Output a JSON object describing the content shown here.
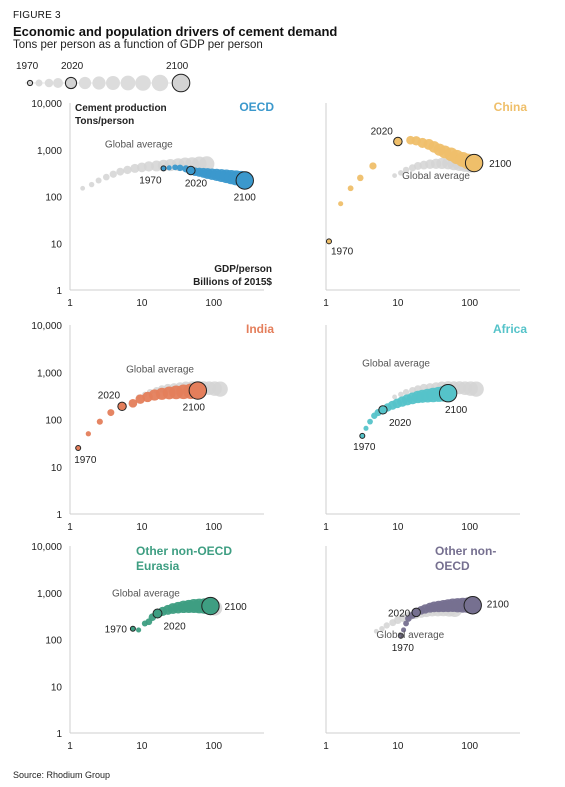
{
  "header": {
    "figure_label": "FIGURE 3",
    "title": "Economic and population drivers of cement demand",
    "subtitle": "Tons per person as a function of GDP per person"
  },
  "legend": {
    "labels": [
      "1970",
      "2020",
      "2100"
    ]
  },
  "source": "Source: Rhodium Group",
  "axis_text": {
    "y_label_line1": "Cement production",
    "y_label_line2": "Tons/person",
    "x_label_line1": "GDP/person",
    "x_label_line2": "Billions of 2015$"
  },
  "colors": {
    "OECD": "#3b98cc",
    "China": "#efbf6a",
    "India": "#e47e5b",
    "Africa": "#55c3c9",
    "Other non-OECD Eurasia": "#3e9e82",
    "Other non-OECD": "#767090",
    "global": "#d3d3d3"
  },
  "chart_data": [
    {
      "type": "scatter",
      "title": "OECD",
      "xscale": "log",
      "yscale": "log",
      "xlim": [
        1,
        500
      ],
      "ylim": [
        1,
        10000
      ],
      "x_ticks": [
        "1",
        "10",
        "100"
      ],
      "y_ticks": [
        "1",
        "10",
        "100",
        "1,000",
        "10,000"
      ],
      "labels": {
        "1970": "1970",
        "2020": "2020",
        "2100": "2100",
        "global": "Global average"
      },
      "series": [
        {
          "x": [
            20,
            24,
            29,
            34,
            41,
            48,
            55,
            63,
            72,
            82,
            95,
            110,
            128,
            150,
            175,
            205,
            240,
            270
          ],
          "y": [
            400,
            410,
            420,
            410,
            390,
            360,
            340,
            330,
            320,
            310,
            300,
            290,
            280,
            270,
            260,
            250,
            240,
            220
          ]
        }
      ],
      "global_average": {
        "x": [
          1.5,
          2,
          2.5,
          3.2,
          4,
          5,
          6.3,
          8,
          10,
          12.5,
          16,
          20,
          25,
          32,
          40,
          50,
          63,
          80
        ],
        "y": [
          150,
          180,
          220,
          260,
          300,
          340,
          370,
          400,
          420,
          440,
          450,
          460,
          470,
          480,
          490,
          490,
          500,
          500
        ]
      }
    },
    {
      "type": "scatter",
      "title": "China",
      "xscale": "log",
      "yscale": "log",
      "xlim": [
        1,
        500
      ],
      "ylim": [
        1,
        10000
      ],
      "x_ticks": [
        "1",
        "10",
        "100"
      ],
      "y_ticks": [
        "1",
        "10",
        "100",
        "1,000",
        "10,000"
      ],
      "labels": {
        "1970": "1970",
        "2020": "2020",
        "2100": "2100",
        "global": "Global average"
      },
      "series": [
        {
          "x": [
            1.1,
            1.6,
            2.2,
            3,
            4.5,
            10,
            15,
            18,
            22,
            27,
            32,
            38,
            45,
            55,
            66,
            80,
            95,
            115
          ],
          "y": [
            11,
            70,
            150,
            250,
            450,
            1500,
            1600,
            1550,
            1400,
            1300,
            1150,
            1000,
            900,
            800,
            700,
            620,
            560,
            520
          ]
        }
      ],
      "global_average": {
        "x": [
          9,
          11,
          13,
          16,
          19,
          23,
          28,
          34,
          41,
          50,
          60,
          72,
          86,
          103
        ],
        "y": [
          280,
          320,
          370,
          410,
          450,
          470,
          490,
          500,
          510,
          510,
          500,
          490,
          480,
          470
        ]
      }
    },
    {
      "type": "scatter",
      "title": "India",
      "xscale": "log",
      "yscale": "log",
      "xlim": [
        1,
        500
      ],
      "ylim": [
        1,
        10000
      ],
      "x_ticks": [
        "1",
        "10",
        "100"
      ],
      "y_ticks": [
        "1",
        "10",
        "100",
        "1,000",
        "10,000"
      ],
      "labels": {
        "1970": "1970",
        "2020": "2020",
        "2100": "2100",
        "global": "Global average"
      },
      "series": [
        {
          "x": [
            1.3,
            1.8,
            2.6,
            3.7,
            5.3,
            7.5,
            9.5,
            12,
            15,
            19,
            24,
            30,
            38,
            48,
            60
          ],
          "y": [
            25,
            50,
            90,
            140,
            190,
            220,
            270,
            300,
            330,
            350,
            365,
            375,
            385,
            395,
            410
          ]
        }
      ],
      "global_average": {
        "x": [
          9,
          11,
          13,
          16,
          19,
          23,
          28,
          34,
          41,
          50,
          60,
          72,
          86,
          103,
          123
        ],
        "y": [
          300,
          340,
          380,
          410,
          440,
          460,
          470,
          480,
          490,
          490,
          480,
          470,
          460,
          450,
          440
        ]
      }
    },
    {
      "type": "scatter",
      "title": "Africa",
      "xscale": "log",
      "yscale": "log",
      "xlim": [
        1,
        500
      ],
      "ylim": [
        1,
        10000
      ],
      "x_ticks": [
        "1",
        "10",
        "100"
      ],
      "y_ticks": [
        "1",
        "10",
        "100",
        "1,000",
        "10,000"
      ],
      "labels": {
        "1970": "1970",
        "2020": "2020",
        "2100": "2100",
        "global": "Global average"
      },
      "series": [
        {
          "x": [
            3.2,
            3.6,
            4.1,
            4.7,
            5.3,
            6.2,
            7.2,
            8.4,
            9.8,
            11.5,
            13.5,
            16,
            19,
            22,
            26,
            31,
            37,
            43,
            50
          ],
          "y": [
            45,
            65,
            90,
            120,
            140,
            160,
            180,
            200,
            220,
            240,
            260,
            280,
            300,
            310,
            320,
            330,
            340,
            350,
            360
          ]
        }
      ],
      "global_average": {
        "x": [
          9,
          11,
          13,
          16,
          19,
          23,
          28,
          34,
          41,
          50,
          60,
          72,
          86,
          103,
          123
        ],
        "y": [
          300,
          340,
          380,
          410,
          440,
          460,
          470,
          480,
          490,
          490,
          480,
          470,
          460,
          450,
          440
        ]
      }
    },
    {
      "type": "scatter",
      "title": "Other non-OECD Eurasia",
      "xscale": "log",
      "yscale": "log",
      "xlim": [
        1,
        500
      ],
      "ylim": [
        1,
        10000
      ],
      "x_ticks": [
        "1",
        "10",
        "100"
      ],
      "y_ticks": [
        "1",
        "10",
        "100",
        "1,000",
        "10,000"
      ],
      "labels": {
        "1970": "1970",
        "2020": "2020",
        "2100": "2100",
        "global": "Global average"
      },
      "series": [
        {
          "x": [
            7.5,
            9,
            11,
            12.5,
            14,
            16.5,
            19.5,
            23,
            27,
            32,
            38,
            45,
            53,
            63,
            75,
            90
          ],
          "y": [
            170,
            160,
            220,
            240,
            300,
            360,
            400,
            430,
            460,
            480,
            500,
            510,
            520,
            520,
            520,
            520
          ]
        }
      ],
      "global_average": {
        "x": [
          16,
          19,
          23,
          28,
          34,
          41,
          50,
          60,
          72,
          86,
          103
        ],
        "y": [
          400,
          430,
          460,
          480,
          500,
          510,
          510,
          500,
          490,
          480,
          470
        ]
      }
    },
    {
      "type": "scatter",
      "title": "Other non-OECD",
      "xscale": "log",
      "yscale": "log",
      "xlim": [
        1,
        500
      ],
      "ylim": [
        1,
        10000
      ],
      "x_ticks": [
        "1",
        "10",
        "100"
      ],
      "y_ticks": [
        "1",
        "10",
        "100",
        "1,000",
        "10,000"
      ],
      "labels": {
        "1970": "1970",
        "2020": "2020",
        "2100": "2100",
        "global": "Global average"
      },
      "series": [
        {
          "x": [
            11,
            12,
            13,
            14,
            16,
            18,
            21,
            24,
            28,
            32,
            37,
            43,
            50,
            58,
            68,
            80,
            95,
            110
          ],
          "y": [
            120,
            160,
            220,
            280,
            330,
            380,
            420,
            450,
            480,
            500,
            510,
            520,
            530,
            540,
            540,
            540,
            540,
            540
          ]
        }
      ],
      "global_average": {
        "x": [
          5,
          6,
          7,
          8.5,
          10,
          12,
          14.5,
          17.5,
          21,
          25,
          30,
          36,
          43,
          52,
          62
        ],
        "y": [
          150,
          170,
          200,
          230,
          260,
          290,
          320,
          350,
          380,
          400,
          420,
          430,
          440,
          440,
          440
        ]
      }
    }
  ]
}
